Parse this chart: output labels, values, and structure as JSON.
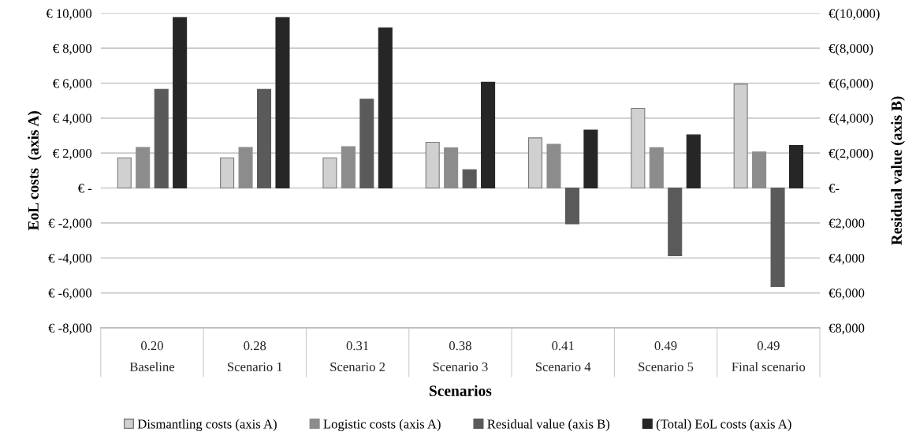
{
  "chart_data": {
    "type": "bar",
    "xlabel": "Scenarios",
    "ylabel": "EoL costs  (axis A)",
    "y2label": "Residual value (axis B)",
    "categories": [
      "0.20\nBaseline",
      "0.28\nScenario 1",
      "0.31\nScenario 2",
      "0.38\nScenario 3",
      "0.41\nScenario 4",
      "0.49\nScenario 5",
      "0.49\nFinal scenario"
    ],
    "series": [
      {
        "name": "Dismantling costs (axis A)",
        "color": "#d0d0d0",
        "values": [
          1730,
          1730,
          1730,
          2620,
          2870,
          4560,
          5950
        ]
      },
      {
        "name": "Logistic costs (axis A)",
        "color": "#8c8c8c",
        "values": [
          2320,
          2320,
          2370,
          2300,
          2500,
          2310,
          2060
        ]
      },
      {
        "name": "Residual value (axis B)",
        "color": "#5a5a5a",
        "axis": "y2",
        "values": [
          -5650,
          -5650,
          -5080,
          -1050,
          2050,
          3880,
          5630
        ]
      },
      {
        "name": "(Total) EoL costs (axis A)",
        "color": "#262626",
        "values": [
          9750,
          9750,
          9170,
          6050,
          3320,
          3040,
          2430
        ]
      }
    ],
    "ylim": [
      -8000,
      10000
    ],
    "yticks": [
      {
        "value": -8000,
        "label": "€ -8,000"
      },
      {
        "value": -6000,
        "label": "€ -6,000"
      },
      {
        "value": -4000,
        "label": "€ -4,000"
      },
      {
        "value": -2000,
        "label": "€ -2,000"
      },
      {
        "value": 0,
        "label": "€ -"
      },
      {
        "value": 2000,
        "label": "€ 2,000"
      },
      {
        "value": 4000,
        "label": "€ 4,000"
      },
      {
        "value": 6000,
        "label": "€ 6,000"
      },
      {
        "value": 8000,
        "label": "€ 8,000"
      },
      {
        "value": 10000,
        "label": "€ 10,000"
      }
    ],
    "y2lim": [
      8000,
      -10000
    ],
    "y2ticks": [
      {
        "value": 8000,
        "label": "€8,000"
      },
      {
        "value": 6000,
        "label": "€6,000"
      },
      {
        "value": 4000,
        "label": "€4,000"
      },
      {
        "value": 2000,
        "label": "€2,000"
      },
      {
        "value": 0,
        "label": "€-"
      },
      {
        "value": -2000,
        "label": "€(2,000)"
      },
      {
        "value": -4000,
        "label": "€(4,000)"
      },
      {
        "value": -6000,
        "label": "€(6,000)"
      },
      {
        "value": -8000,
        "label": "€(8,000)"
      },
      {
        "value": -10000,
        "label": "€(10,000)"
      }
    ],
    "grid": "y",
    "legend": "bottom"
  }
}
